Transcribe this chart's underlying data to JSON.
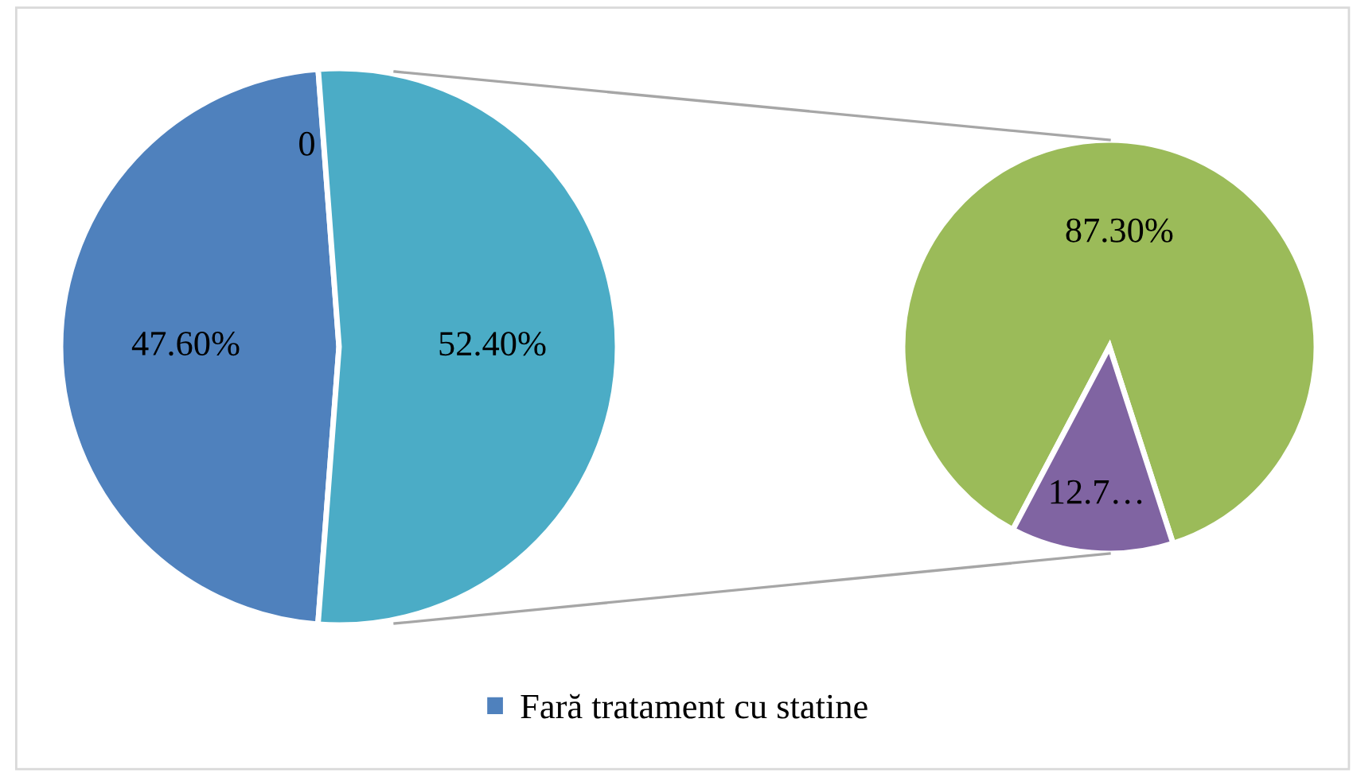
{
  "chart_data": [
    {
      "type": "pie",
      "categories": [
        null,
        "Fară tratament cu statine",
        null
      ],
      "values": [
        0,
        47.6,
        52.4
      ],
      "colors": [
        "#c0504d",
        "#4f81bd",
        "#4bacc6"
      ],
      "value_labels": [
        "0",
        "47.60%",
        "52.40%"
      ],
      "legend": "bottom"
    },
    {
      "type": "pie",
      "categories": [
        null,
        null
      ],
      "values": [
        87.3,
        12.7
      ],
      "colors": [
        "#9bbb59",
        "#8064a2"
      ],
      "value_labels": [
        "87.30%",
        "12.7…"
      ]
    }
  ]
}
